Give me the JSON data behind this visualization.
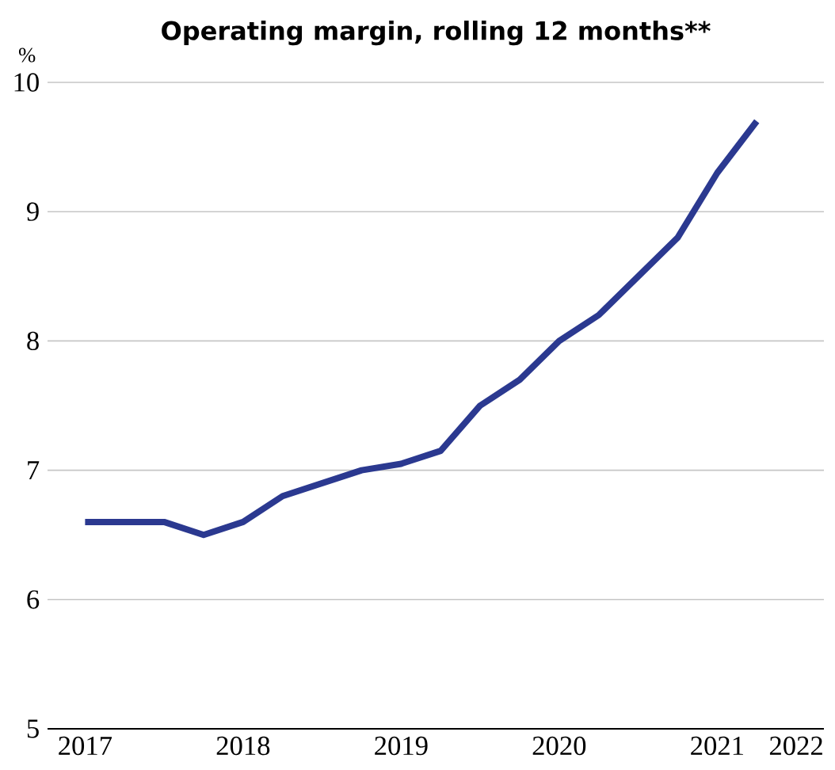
{
  "chart_data": {
    "type": "line",
    "title": "Operating margin, rolling 12 months**",
    "ylabel": "%",
    "categories": [
      "2017",
      null,
      null,
      null,
      "2018",
      null,
      null,
      null,
      "2019",
      null,
      null,
      null,
      "2020",
      null,
      null,
      null,
      "2021",
      null,
      "2022"
    ],
    "series": [
      {
        "color": "#2b3990",
        "values": [
          6.6,
          6.6,
          6.6,
          6.5,
          6.6,
          6.8,
          6.9,
          7.0,
          7.05,
          7.15,
          7.5,
          7.7,
          8.0,
          8.2,
          8.5,
          8.8,
          9.3,
          9.7,
          null
        ]
      }
    ],
    "ylim": [
      5,
      10
    ],
    "yticks": [
      5,
      6,
      7,
      8,
      9,
      10
    ],
    "grid": "y",
    "marker": "none",
    "line_style": "solid"
  }
}
